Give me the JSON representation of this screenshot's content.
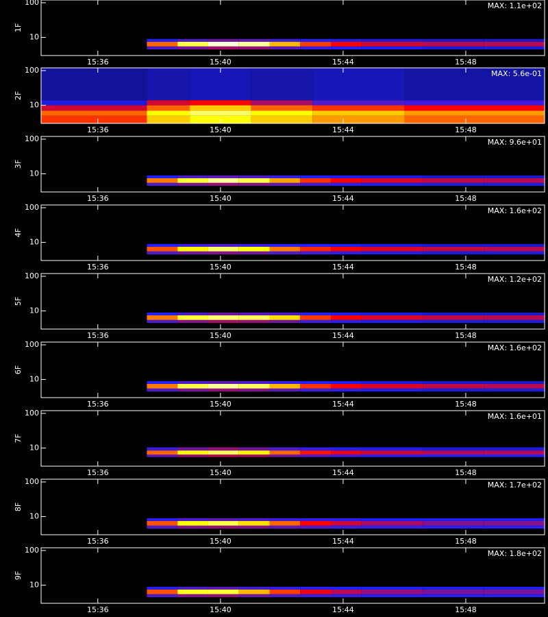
{
  "chart_data": [
    {
      "type": "heatmap",
      "ylabel": "1F",
      "annotation": "MAX: 1.1e+02",
      "ylog": true,
      "ylim": [
        3,
        120
      ],
      "yticks": [
        10,
        100
      ],
      "xlim": [
        934.15,
        950.57
      ],
      "xticks": [
        {
          "value": 936,
          "label": "15:36"
        },
        {
          "value": 940,
          "label": "15:40"
        },
        {
          "value": 944,
          "label": "15:44"
        },
        {
          "value": 948,
          "label": "15:48"
        }
      ],
      "colormap": [
        "#000000",
        "#2020ff",
        "#ff0000",
        "#ffff00",
        "#ffffff"
      ],
      "zlim": [
        0,
        1
      ],
      "x_edges": [
        937.6,
        938.6,
        939.6,
        940.6,
        941.6,
        942.6,
        943.6,
        944.6,
        946.6,
        948.6,
        950.6
      ],
      "y_edges": [
        4.5,
        5.5,
        7.5,
        9
      ],
      "z": [
        [
          0.3,
          0.35,
          0.4,
          0.38,
          0.32,
          0.28,
          0.26,
          0.24,
          0.22,
          0.22
        ],
        [
          0.6,
          0.82,
          0.96,
          0.9,
          0.68,
          0.56,
          0.5,
          0.45,
          0.42,
          0.42
        ],
        [
          0.25,
          0.3,
          0.34,
          0.32,
          0.28,
          0.25,
          0.24,
          0.22,
          0.2,
          0.2
        ]
      ]
    },
    {
      "type": "heatmap",
      "ylabel": "2F",
      "annotation": "MAX: 5.6e-01",
      "ylog": true,
      "ylim": [
        3,
        120
      ],
      "yticks": [
        10,
        100
      ],
      "xlim": [
        934.15,
        950.57
      ],
      "xticks": [
        {
          "value": 936,
          "label": "15:36"
        },
        {
          "value": 940,
          "label": "15:40"
        },
        {
          "value": 944,
          "label": "15:44"
        },
        {
          "value": 948,
          "label": "15:48"
        }
      ],
      "colormap": [
        "#000000",
        "#2020ff",
        "#ff0000",
        "#ffff00",
        "#ffffff"
      ],
      "zlim": [
        0,
        1
      ],
      "x_edges": [
        934.15,
        937.6,
        939,
        941,
        943,
        946,
        950.57
      ],
      "y_edges": [
        3,
        5,
        7,
        10,
        14,
        120
      ],
      "z": [
        [
          0.55,
          0.7,
          0.75,
          0.7,
          0.65,
          0.6
        ],
        [
          0.6,
          0.75,
          0.85,
          0.75,
          0.7,
          0.65
        ],
        [
          0.45,
          0.6,
          0.7,
          0.6,
          0.55,
          0.5
        ],
        [
          0.22,
          0.45,
          0.5,
          0.4,
          0.3,
          0.28
        ],
        [
          0.15,
          0.17,
          0.18,
          0.17,
          0.18,
          0.16
        ]
      ]
    },
    {
      "type": "heatmap",
      "ylabel": "3F",
      "annotation": "MAX: 9.6e+01",
      "ylog": true,
      "ylim": [
        3,
        120
      ],
      "yticks": [
        10,
        100
      ],
      "xlim": [
        934.15,
        950.57
      ],
      "xticks": [
        {
          "value": 936,
          "label": "15:36"
        },
        {
          "value": 940,
          "label": "15:40"
        },
        {
          "value": 944,
          "label": "15:44"
        },
        {
          "value": 948,
          "label": "15:48"
        }
      ],
      "colormap": [
        "#000000",
        "#2020ff",
        "#ff0000",
        "#ffff00",
        "#ffffff"
      ],
      "zlim": [
        0,
        1
      ],
      "x_edges": [
        937.6,
        938.6,
        939.6,
        940.6,
        941.6,
        942.6,
        943.6,
        944.6,
        946.6,
        948.6,
        950.6
      ],
      "y_edges": [
        4.5,
        5.5,
        7.5,
        9
      ],
      "z": [
        [
          0.3,
          0.35,
          0.38,
          0.36,
          0.32,
          0.28,
          0.26,
          0.24,
          0.22,
          0.22
        ],
        [
          0.62,
          0.8,
          0.9,
          0.82,
          0.66,
          0.55,
          0.5,
          0.46,
          0.43,
          0.42
        ],
        [
          0.25,
          0.3,
          0.32,
          0.3,
          0.27,
          0.25,
          0.24,
          0.22,
          0.2,
          0.2
        ]
      ]
    },
    {
      "type": "heatmap",
      "ylabel": "4F",
      "annotation": "MAX: 1.6e+02",
      "ylog": true,
      "ylim": [
        3,
        120
      ],
      "yticks": [
        10,
        100
      ],
      "xlim": [
        934.15,
        950.57
      ],
      "xticks": [
        {
          "value": 936,
          "label": "15:36"
        },
        {
          "value": 940,
          "label": "15:40"
        },
        {
          "value": 944,
          "label": "15:44"
        },
        {
          "value": 948,
          "label": "15:48"
        }
      ],
      "colormap": [
        "#000000",
        "#2020ff",
        "#ff0000",
        "#ffff00",
        "#ffffff"
      ],
      "zlim": [
        0,
        1
      ],
      "x_edges": [
        937.6,
        938.6,
        939.6,
        940.6,
        941.6,
        942.6,
        943.6,
        944.6,
        946.6,
        948.6,
        950.6
      ],
      "y_edges": [
        4.5,
        5.5,
        7.5,
        9
      ],
      "z": [
        [
          0.3,
          0.34,
          0.36,
          0.34,
          0.3,
          0.28,
          0.26,
          0.24,
          0.22,
          0.22
        ],
        [
          0.58,
          0.74,
          0.85,
          0.76,
          0.62,
          0.54,
          0.5,
          0.46,
          0.43,
          0.42
        ],
        [
          0.25,
          0.28,
          0.3,
          0.28,
          0.26,
          0.25,
          0.24,
          0.22,
          0.2,
          0.2
        ]
      ]
    },
    {
      "type": "heatmap",
      "ylabel": "5F",
      "annotation": "MAX: 1.2e+02",
      "ylog": true,
      "ylim": [
        3,
        120
      ],
      "yticks": [
        10,
        100
      ],
      "xlim": [
        934.15,
        950.57
      ],
      "xticks": [
        {
          "value": 936,
          "label": "15:36"
        },
        {
          "value": 940,
          "label": "15:40"
        },
        {
          "value": 944,
          "label": "15:44"
        },
        {
          "value": 948,
          "label": "15:48"
        }
      ],
      "colormap": [
        "#000000",
        "#2020ff",
        "#ff0000",
        "#ffff00",
        "#ffffff"
      ],
      "zlim": [
        0,
        1
      ],
      "x_edges": [
        937.6,
        938.6,
        939.6,
        940.6,
        941.6,
        942.6,
        943.6,
        944.6,
        946.6,
        948.6,
        950.6
      ],
      "y_edges": [
        4.5,
        5.5,
        7.5,
        9
      ],
      "z": [
        [
          0.3,
          0.36,
          0.4,
          0.38,
          0.34,
          0.28,
          0.26,
          0.24,
          0.22,
          0.22
        ],
        [
          0.62,
          0.8,
          0.86,
          0.84,
          0.72,
          0.56,
          0.5,
          0.46,
          0.43,
          0.42
        ],
        [
          0.26,
          0.3,
          0.34,
          0.32,
          0.3,
          0.26,
          0.24,
          0.22,
          0.2,
          0.2
        ]
      ]
    },
    {
      "type": "heatmap",
      "ylabel": "6F",
      "annotation": "MAX: 1.6e+02",
      "ylog": true,
      "ylim": [
        3,
        120
      ],
      "yticks": [
        10,
        100
      ],
      "xlim": [
        934.15,
        950.57
      ],
      "xticks": [
        {
          "value": 936,
          "label": "15:36"
        },
        {
          "value": 940,
          "label": "15:40"
        },
        {
          "value": 944,
          "label": "15:44"
        },
        {
          "value": 948,
          "label": "15:48"
        }
      ],
      "colormap": [
        "#000000",
        "#2020ff",
        "#ff0000",
        "#ffff00",
        "#ffffff"
      ],
      "zlim": [
        0,
        1
      ],
      "x_edges": [
        937.6,
        938.6,
        939.6,
        940.6,
        941.6,
        942.6,
        943.6,
        944.6,
        946.6,
        948.6,
        950.6
      ],
      "y_edges": [
        4.5,
        5.5,
        7.5,
        9
      ],
      "z": [
        [
          0.3,
          0.35,
          0.38,
          0.36,
          0.32,
          0.28,
          0.26,
          0.24,
          0.22,
          0.22
        ],
        [
          0.62,
          0.82,
          0.9,
          0.84,
          0.68,
          0.55,
          0.5,
          0.46,
          0.43,
          0.42
        ],
        [
          0.25,
          0.3,
          0.32,
          0.3,
          0.27,
          0.25,
          0.24,
          0.22,
          0.2,
          0.2
        ]
      ]
    },
    {
      "type": "heatmap",
      "ylabel": "7F",
      "annotation": "MAX: 1.6e+01",
      "ylog": true,
      "ylim": [
        3,
        120
      ],
      "yticks": [
        10,
        100
      ],
      "xlim": [
        934.15,
        950.57
      ],
      "xticks": [
        {
          "value": 936,
          "label": "15:36"
        },
        {
          "value": 940,
          "label": "15:40"
        },
        {
          "value": 944,
          "label": "15:44"
        },
        {
          "value": 948,
          "label": "15:48"
        }
      ],
      "colormap": [
        "#000000",
        "#2020ff",
        "#ff0000",
        "#ffff00",
        "#ffffff"
      ],
      "zlim": [
        0,
        1
      ],
      "x_edges": [
        937.6,
        938.6,
        939.6,
        940.6,
        941.6,
        942.6,
        943.6,
        944.6,
        946.6,
        948.6,
        950.6
      ],
      "y_edges": [
        5.5,
        6.5,
        8.5,
        10.5
      ],
      "z": [
        [
          0.32,
          0.38,
          0.42,
          0.4,
          0.34,
          0.3,
          0.28,
          0.26,
          0.25,
          0.25
        ],
        [
          0.6,
          0.76,
          0.84,
          0.74,
          0.6,
          0.52,
          0.48,
          0.45,
          0.42,
          0.42
        ],
        [
          0.28,
          0.34,
          0.38,
          0.34,
          0.3,
          0.27,
          0.25,
          0.24,
          0.22,
          0.22
        ]
      ]
    },
    {
      "type": "heatmap",
      "ylabel": "8F",
      "annotation": "MAX: 1.7e+02",
      "ylog": true,
      "ylim": [
        3,
        120
      ],
      "yticks": [
        10,
        100
      ],
      "xlim": [
        934.15,
        950.57
      ],
      "xticks": [
        {
          "value": 936,
          "label": "15:36"
        },
        {
          "value": 940,
          "label": "15:40"
        },
        {
          "value": 944,
          "label": "15:44"
        },
        {
          "value": 948,
          "label": "15:48"
        }
      ],
      "colormap": [
        "#000000",
        "#2020ff",
        "#ff0000",
        "#ffff00",
        "#ffffff"
      ],
      "zlim": [
        0,
        1
      ],
      "x_edges": [
        937.6,
        938.6,
        939.6,
        940.6,
        941.6,
        942.6,
        943.6,
        944.6,
        946.6,
        948.6,
        950.6
      ],
      "y_edges": [
        4.5,
        5.5,
        7.5,
        9
      ],
      "z": [
        [
          0.3,
          0.36,
          0.38,
          0.36,
          0.32,
          0.3,
          0.28,
          0.27,
          0.26,
          0.26
        ],
        [
          0.58,
          0.76,
          0.82,
          0.72,
          0.6,
          0.5,
          0.44,
          0.4,
          0.36,
          0.36
        ],
        [
          0.26,
          0.3,
          0.32,
          0.3,
          0.28,
          0.27,
          0.26,
          0.25,
          0.24,
          0.24
        ]
      ]
    },
    {
      "type": "heatmap",
      "ylabel": "9F",
      "annotation": "MAX: 1.8e+02",
      "ylog": true,
      "ylim": [
        3,
        120
      ],
      "yticks": [
        10,
        100
      ],
      "xlim": [
        934.15,
        950.57
      ],
      "xticks": [
        {
          "value": 936,
          "label": "15:36"
        },
        {
          "value": 940,
          "label": "15:40"
        },
        {
          "value": 944,
          "label": "15:44"
        },
        {
          "value": 948,
          "label": "15:48"
        }
      ],
      "colormap": [
        "#000000",
        "#2020ff",
        "#ff0000",
        "#ffff00",
        "#ffffff"
      ],
      "zlim": [
        0,
        1
      ],
      "x_edges": [
        937.6,
        938.6,
        939.6,
        940.6,
        941.6,
        942.6,
        943.6,
        944.6,
        946.6,
        948.6,
        950.6
      ],
      "y_edges": [
        4.5,
        5.5,
        7.5,
        9
      ],
      "z": [
        [
          0.3,
          0.36,
          0.38,
          0.34,
          0.3,
          0.28,
          0.27,
          0.26,
          0.26,
          0.26
        ],
        [
          0.58,
          0.78,
          0.8,
          0.68,
          0.56,
          0.48,
          0.42,
          0.38,
          0.35,
          0.35
        ],
        [
          0.26,
          0.3,
          0.32,
          0.29,
          0.27,
          0.26,
          0.25,
          0.25,
          0.24,
          0.24
        ]
      ]
    }
  ]
}
